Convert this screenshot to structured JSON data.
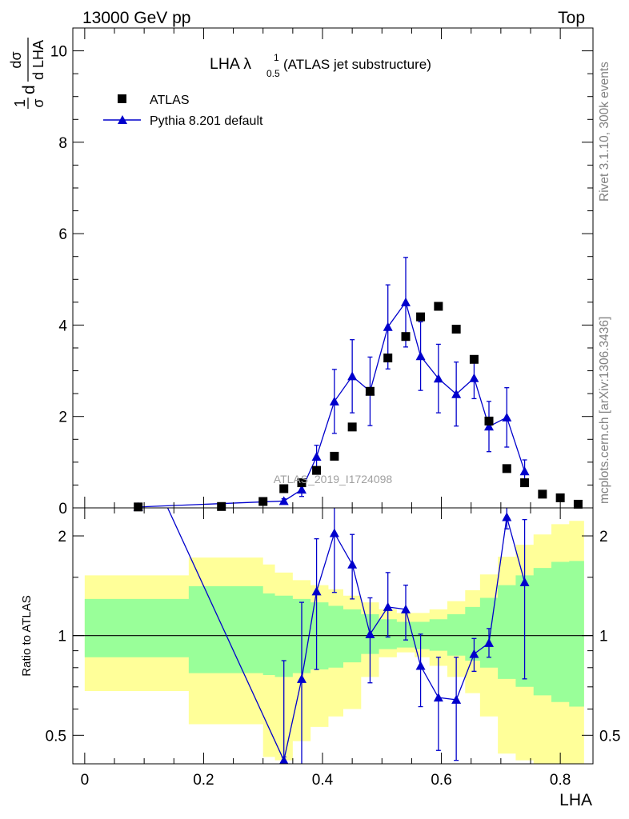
{
  "header": {
    "left": "13000 GeV pp",
    "right": "Top"
  },
  "side": {
    "rivet": "Rivet 3.1.10,  300k events",
    "mcplots": "mcplots.cern.ch [arXiv:1306.3436]"
  },
  "chart_data": [
    {
      "type": "scatter",
      "title_main": "LHA λ",
      "title_sup": "1",
      "title_sub": "0.5",
      "title_rest": " (ATLAS jet substructure)",
      "ylabel": "(1/σ) dσ / d LHA",
      "ylabel_parts": {
        "frac1_num": "1",
        "frac1_den": "σ",
        "d": "d",
        "frac2_num": "dσ",
        "frac2_den": "d LHA"
      },
      "watermark": "ATLAS_2019_I1724098",
      "xlim": [
        -0.02,
        0.855
      ],
      "ylim": [
        0,
        10.5
      ],
      "yticks": [
        "0",
        "2",
        "4",
        "6",
        "8",
        "10"
      ],
      "legend_position": "top-left",
      "series": [
        {
          "name": "ATLAS",
          "marker": "square",
          "color": "#000000",
          "x": [
            0.09,
            0.23,
            0.3,
            0.335,
            0.365,
            0.39,
            0.42,
            0.45,
            0.48,
            0.51,
            0.54,
            0.565,
            0.595,
            0.625,
            0.655,
            0.68,
            0.71,
            0.74,
            0.77,
            0.8,
            0.83
          ],
          "y": [
            0.02,
            0.03,
            0.14,
            0.42,
            0.55,
            0.82,
            1.13,
            1.77,
            2.55,
            3.28,
            3.75,
            4.18,
            4.41,
            3.91,
            3.25,
            1.9,
            0.86,
            0.55,
            0.3,
            0.22,
            0.08
          ]
        },
        {
          "name": "Pythia 8.201 default",
          "marker": "triangle",
          "color": "#0000cc",
          "x": [
            0.09,
            0.335,
            0.365,
            0.39,
            0.42,
            0.45,
            0.48,
            0.51,
            0.54,
            0.565,
            0.595,
            0.625,
            0.655,
            0.68,
            0.71,
            0.74
          ],
          "y": [
            0.02,
            0.15,
            0.4,
            1.12,
            2.33,
            2.88,
            2.55,
            3.96,
            4.5,
            3.32,
            2.83,
            2.49,
            2.84,
            1.78,
            1.98,
            0.8
          ],
          "err": [
            0.02,
            0.05,
            0.15,
            0.25,
            0.7,
            0.8,
            0.75,
            0.92,
            0.98,
            0.75,
            0.75,
            0.7,
            0.45,
            0.55,
            0.65,
            0.25
          ]
        }
      ]
    },
    {
      "type": "scatter",
      "ylabel": "Ratio to ATLAS",
      "xlabel": "LHA",
      "xlim": [
        -0.02,
        0.855
      ],
      "xticks": [
        "0",
        "0.2",
        "0.4",
        "0.6",
        "0.8"
      ],
      "ylim": [
        0.41,
        2.43
      ],
      "yscale": "log",
      "yticks": [
        "0.5",
        "1",
        "2"
      ],
      "bands": {
        "bin_edges": [
          0.0,
          0.175,
          0.3,
          0.32,
          0.35,
          0.38,
          0.41,
          0.435,
          0.465,
          0.495,
          0.525,
          0.555,
          0.58,
          0.61,
          0.64,
          0.665,
          0.695,
          0.725,
          0.755,
          0.785,
          0.815,
          0.84
        ],
        "green_color": "#99ff99",
        "green_lo": [
          0.86,
          0.77,
          0.76,
          0.75,
          0.77,
          0.79,
          0.8,
          0.83,
          0.88,
          0.91,
          0.92,
          0.91,
          0.9,
          0.87,
          0.84,
          0.8,
          0.74,
          0.7,
          0.66,
          0.63,
          0.61
        ],
        "green_hi": [
          1.29,
          1.41,
          1.34,
          1.32,
          1.29,
          1.26,
          1.23,
          1.2,
          1.16,
          1.12,
          1.1,
          1.1,
          1.12,
          1.16,
          1.22,
          1.3,
          1.42,
          1.52,
          1.6,
          1.67,
          1.68
        ],
        "yellow_color": "#ffff99",
        "yellow_lo": [
          0.68,
          0.54,
          0.43,
          0.42,
          0.48,
          0.53,
          0.57,
          0.6,
          0.75,
          0.86,
          0.89,
          0.86,
          0.81,
          0.75,
          0.67,
          0.57,
          0.44,
          0.42,
          0.41,
          0.41,
          0.41
        ],
        "yellow_hi": [
          1.52,
          1.72,
          1.64,
          1.55,
          1.47,
          1.42,
          1.38,
          1.32,
          1.26,
          1.2,
          1.17,
          1.17,
          1.2,
          1.27,
          1.37,
          1.53,
          1.73,
          1.88,
          2.02,
          2.17,
          2.22
        ]
      },
      "series": [
        {
          "name": "Pythia 8.201 default",
          "color": "#0000cc",
          "x": [
            0.335,
            0.365,
            0.39,
            0.42,
            0.45,
            0.48,
            0.51,
            0.54,
            0.565,
            0.595,
            0.625,
            0.655,
            0.68,
            0.71,
            0.74
          ],
          "y": [
            0.42,
            0.74,
            1.36,
            2.04,
            1.64,
            1.01,
            1.22,
            1.2,
            0.81,
            0.65,
            0.64,
            0.88,
            0.95,
            2.28,
            1.45
          ],
          "err_lo": [
            0.43,
            0.38,
            0.79,
            1.35,
            1.29,
            0.72,
            0.99,
            0.97,
            0.61,
            0.45,
            0.42,
            0.78,
            0.86,
            2.1,
            0.74
          ],
          "err_hi": [
            0.84,
            1.26,
            1.96,
            2.5,
            2.02,
            1.3,
            1.55,
            1.42,
            1.01,
            0.86,
            0.86,
            0.98,
            1.05,
            2.5,
            2.24
          ]
        }
      ]
    }
  ]
}
